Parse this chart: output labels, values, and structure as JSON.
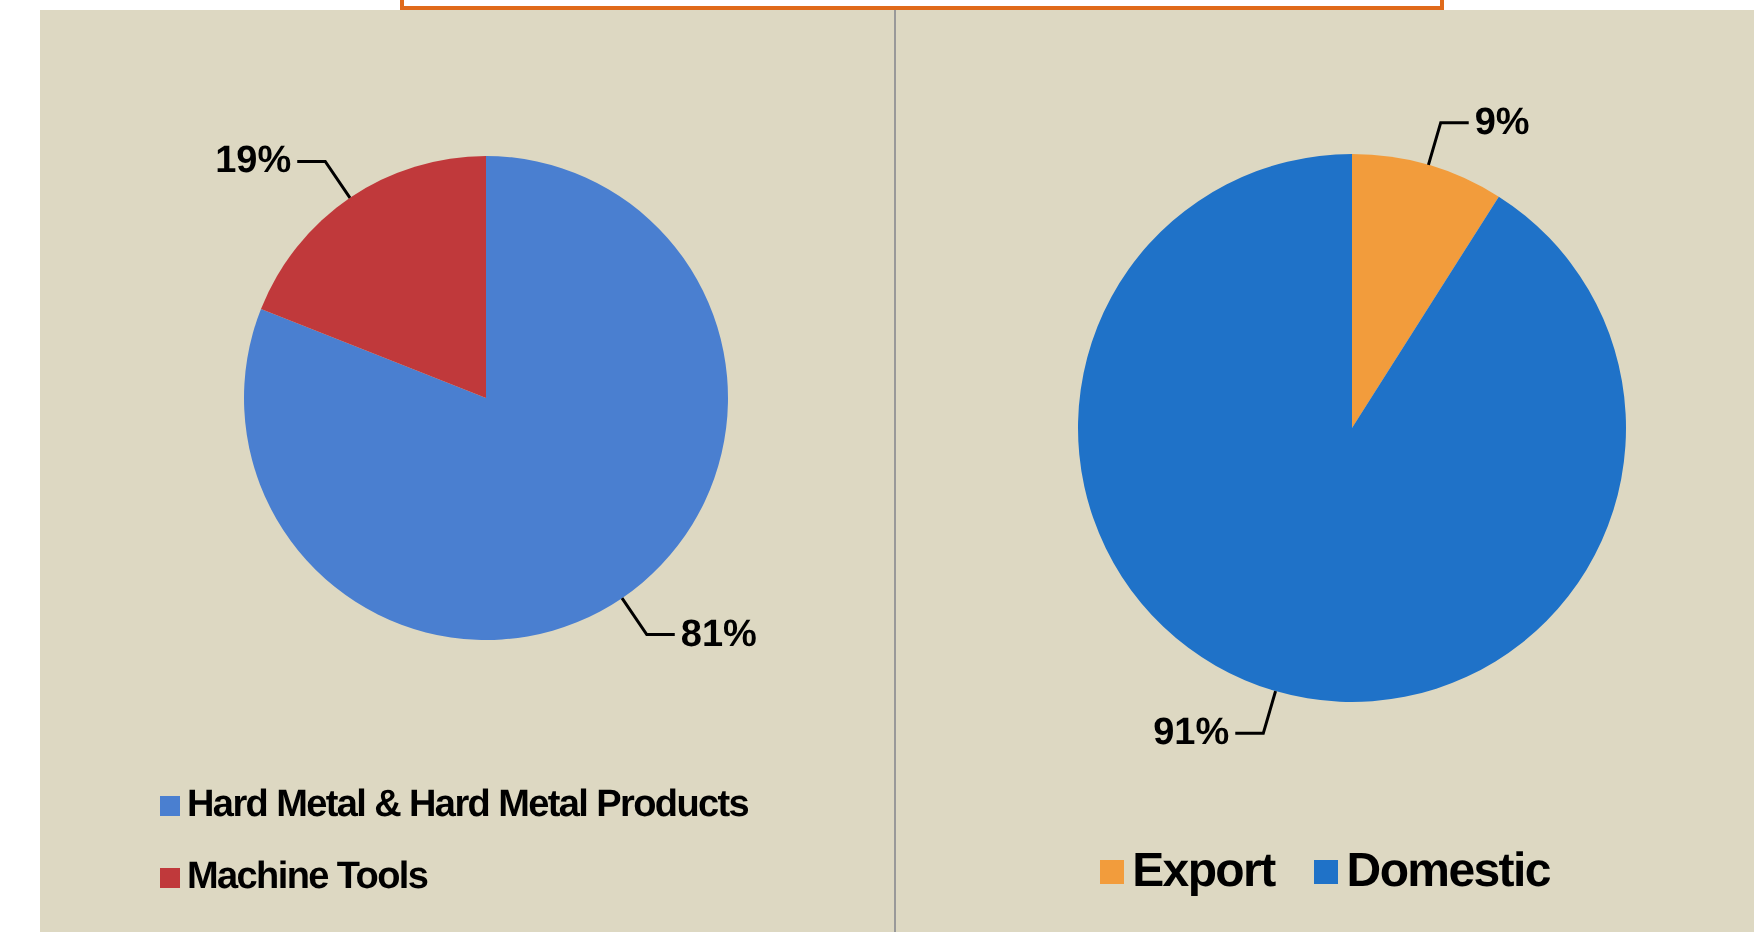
{
  "chart_data": [
    {
      "type": "pie",
      "categories": [
        "Hard Metal & Hard Metal Products",
        "Machine Tools"
      ],
      "values": [
        81,
        19
      ],
      "colors": [
        "#4a7fd0",
        "#c0393b"
      ],
      "value_labels": [
        "81%",
        "19%"
      ],
      "legend": "bottom left"
    },
    {
      "type": "pie",
      "categories": [
        "Export",
        "Domestic"
      ],
      "values": [
        9,
        91
      ],
      "colors": [
        "#f29c3c",
        "#1f72c8"
      ],
      "value_labels": [
        "9%",
        "91%"
      ],
      "legend": "bottom"
    }
  ]
}
